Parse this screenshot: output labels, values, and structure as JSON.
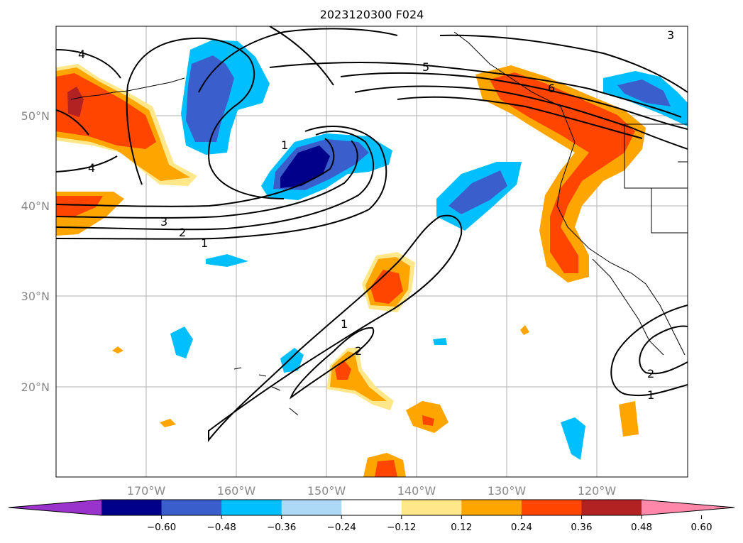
{
  "title": "2023120300 F024",
  "map": {
    "lon_labels": [
      "170°W",
      "160°W",
      "150°W",
      "140°W",
      "130°W",
      "120°W"
    ],
    "lat_labels": [
      "50°N",
      "40°N",
      "30°N",
      "20°N"
    ],
    "contour_labels": [
      "1",
      "2",
      "3",
      "4",
      "5",
      "6",
      "4",
      "1",
      "2",
      "1",
      "1",
      "2",
      "3"
    ]
  },
  "colorbar": {
    "colors": [
      "#9a33cc",
      "#00008b",
      "#3a5fcd",
      "#00bfff",
      "#add8f6",
      "#ffffff",
      "#ffe78a",
      "#ffa500",
      "#ff4500",
      "#b22222",
      "#ff88aa"
    ],
    "tick_labels": [
      "−0.60",
      "−0.48",
      "−0.36",
      "−0.24",
      "−0.12",
      "0.12",
      "0.24",
      "0.36",
      "0.48",
      "0.60"
    ]
  }
}
